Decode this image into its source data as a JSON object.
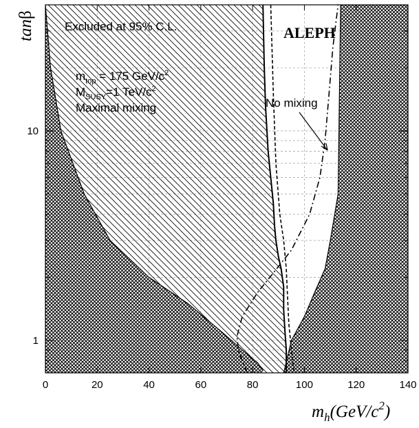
{
  "chart_data": {
    "type": "line",
    "title": "",
    "xlabel": "m_h(GeV/c^2)",
    "ylabel": "tanβ",
    "xlim": [
      0,
      140
    ],
    "ylim": [
      0.7,
      40
    ],
    "yscale": "log",
    "grid": true,
    "x_ticks": [
      0,
      20,
      40,
      60,
      80,
      100,
      120,
      140
    ],
    "y_ticks": [
      1,
      10
    ],
    "regions": [
      {
        "name": "theoretically-inaccessible",
        "fill": "crosshatch",
        "left_boundary": {
          "x": [
            0,
            2,
            6,
            15,
            25,
            40,
            55,
            68,
            76,
            82,
            84,
            83
          ],
          "y": [
            40,
            20,
            10,
            5,
            3,
            2,
            1.5,
            1.1,
            0.9,
            0.78,
            0.72,
            0.7
          ]
        },
        "right_boundary": {
          "x": [
            92,
            95,
            100,
            104,
            108,
            110,
            113,
            114
          ],
          "y": [
            0.7,
            1.0,
            1.3,
            1.7,
            2.2,
            3.0,
            5,
            40
          ]
        }
      },
      {
        "name": "excluded-95CL",
        "fill": "diagonal-hatch",
        "edge": {
          "x": [
            84,
            84.5,
            85,
            86,
            87,
            88,
            88.5,
            89,
            90,
            91,
            92,
            92,
            92.5,
            93,
            93
          ],
          "y": [
            40,
            20,
            13,
            8,
            6,
            4.5,
            3.5,
            3,
            2.5,
            2.2,
            1.8,
            1.4,
            1.1,
            0.9,
            0.7
          ]
        }
      }
    ],
    "series": [
      {
        "name": "Maximal mixing",
        "style": "solid",
        "x": [
          84,
          84.5,
          85,
          86,
          87,
          88,
          88.5,
          89,
          90,
          91,
          92,
          92,
          92.5,
          93,
          93
        ],
        "y": [
          40,
          20,
          13,
          8,
          6,
          4.5,
          3.5,
          3,
          2.5,
          2.2,
          1.8,
          1.4,
          1.1,
          0.9,
          0.7
        ]
      },
      {
        "name": "No mixing",
        "style": "dash-dot",
        "x": [
          78,
          76,
          74.5,
          74,
          76,
          82,
          88,
          95,
          102,
          106,
          108,
          109.5,
          111,
          113
        ],
        "y": [
          0.7,
          0.8,
          0.9,
          1.05,
          1.3,
          1.7,
          2.1,
          2.7,
          4,
          6,
          9,
          15,
          25,
          40
        ]
      },
      {
        "style": "dashed",
        "x": [
          87,
          88,
          89,
          90.5,
          92,
          93,
          93.5,
          94,
          95,
          96
        ],
        "y": [
          40,
          15,
          7,
          4,
          3,
          2.2,
          1.6,
          1.2,
          0.9,
          0.7
        ]
      }
    ],
    "annotations": [
      "Excluded at 95% C.L.",
      "ALEPH",
      "No mixing"
    ],
    "notes": [
      "m_top = 175 GeV/c^2",
      "M_SUSY=1 TeV/c^2",
      "Maximal mixing"
    ]
  },
  "text": {
    "excluded": "Excluded at 95% C.L.",
    "experiment": "ALEPH",
    "no_mixing": "No mixing",
    "m_top": "m",
    "m_top_sub": "top",
    "m_top_val": " = 175 GeV/c",
    "m_susy": "M",
    "m_susy_sub": "SUSY",
    "m_susy_val": "=1 TeV/c",
    "sup2": "2",
    "maximal": "Maximal mixing",
    "ylabel_tan": "tan",
    "ylabel_beta": "β",
    "xlabel_m": "m",
    "xlabel_sub": "h",
    "xlabel_open": "(GeV/c",
    "xlabel_close": ")"
  }
}
